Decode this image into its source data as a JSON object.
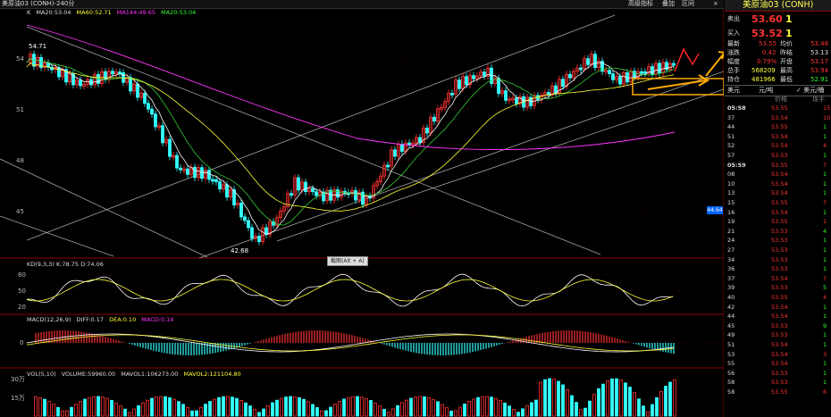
{
  "topbar": {
    "title": "美原油03 (CONH)-240分",
    "menu_items": [
      "高级指标",
      "叠加",
      "区间"
    ],
    "close_glyph": "×"
  },
  "price_panel": {
    "legend_prefix": "K",
    "ma20": "MA20:53.04",
    "ma60": "MA60:52.71",
    "ma144": "MA144:49.65",
    "ma20b": "MA20:53.04",
    "y_labels": [
      "54",
      "51",
      "48",
      "45"
    ],
    "high_label": "54.71",
    "low_label": "42.68",
    "current_price_tag": "44.64",
    "screenshot_hint": "截图(Alt + A)"
  },
  "kdj_panel": {
    "legend": "KD(9,3,3)  K:78.75  D:74.06",
    "y_labels": [
      "80",
      "50",
      "20"
    ]
  },
  "macd_panel": {
    "legend_prefix": "MACD(12,26,9)",
    "diff": "DIFF:0.17",
    "dea": "DEA:0.10",
    "macd": "MACD:0.14",
    "y_labels": [
      "0"
    ]
  },
  "vol_panel": {
    "legend_prefix": "VOL(5,10)",
    "volume": "VOLUME:59960.00",
    "mavol1": "MAVOL1:106273.00",
    "mavol2": "MAVOL2:121104.80",
    "y_labels": [
      "30万",
      "15万"
    ]
  },
  "quote": {
    "name": "美原油03 (CONH)",
    "sell_label": "卖出",
    "sell_price": "53.60",
    "sell_vol": "1",
    "buy_label": "买入",
    "buy_price": "53.52",
    "buy_vol": "1",
    "r1": {
      "l1": "最新",
      "v1": "53.55",
      "l2": "均价",
      "v2": "53.48"
    },
    "r2": {
      "l1": "涨跌",
      "v1": "0.42",
      "l2": "昨结",
      "v2": "53.13"
    },
    "r3": {
      "l1": "幅度",
      "v1": "0.79%",
      "l2": "开盘",
      "v2": "53.17"
    },
    "r4": {
      "l1": "总手",
      "v1": "568209",
      "l2": "最高",
      "v2": "53.94"
    },
    "r5": {
      "l1": "持仓",
      "v1": "481966",
      "l2": "最低",
      "v2": "52.91"
    },
    "tab1": "美元",
    "tab2": "元/吨",
    "tab3": "✓ 美元/桶",
    "col_price": "价格",
    "col_vol": "现手"
  },
  "ticks": [
    {
      "t": "05:58",
      "p": "53.55",
      "v": "15",
      "c": "red"
    },
    {
      "t": "37",
      "p": "53.54",
      "v": "10",
      "c": "red"
    },
    {
      "t": "44",
      "p": "53.55",
      "v": "1",
      "c": "grn"
    },
    {
      "t": "51",
      "p": "53.54",
      "v": "1",
      "c": "grn"
    },
    {
      "t": "52",
      "p": "53.54",
      "v": "4",
      "c": "red"
    },
    {
      "t": "57",
      "p": "53.53",
      "v": "1",
      "c": "grn"
    },
    {
      "t": "05:59",
      "p": "53.55",
      "v": "7",
      "c": "red"
    },
    {
      "t": "08",
      "p": "53.54",
      "v": "1",
      "c": "grn"
    },
    {
      "t": "10",
      "p": "53.54",
      "v": "1",
      "c": "grn"
    },
    {
      "t": "13",
      "p": "53.54",
      "v": "1",
      "c": "grn"
    },
    {
      "t": "15",
      "p": "53.55",
      "v": "7",
      "c": "red"
    },
    {
      "t": "16",
      "p": "53.54",
      "v": "1",
      "c": "grn"
    },
    {
      "t": "19",
      "p": "53.55",
      "v": "1",
      "c": "red"
    },
    {
      "t": "21",
      "p": "53.53",
      "v": "4",
      "c": "grn"
    },
    {
      "t": "24",
      "p": "53.53",
      "v": "1",
      "c": "grn"
    },
    {
      "t": "27",
      "p": "53.53",
      "v": "1",
      "c": "grn"
    },
    {
      "t": "34",
      "p": "53.53",
      "v": "1",
      "c": "grn"
    },
    {
      "t": "36",
      "p": "53.53",
      "v": "1",
      "c": "grn"
    },
    {
      "t": "37",
      "p": "53.54",
      "v": "7",
      "c": "red"
    },
    {
      "t": "39",
      "p": "53.53",
      "v": "5",
      "c": "grn"
    },
    {
      "t": "40",
      "p": "53.55",
      "v": "4",
      "c": "red"
    },
    {
      "t": "42",
      "p": "53.54",
      "v": "1",
      "c": "grn"
    },
    {
      "t": "44",
      "p": "53.54",
      "v": "1",
      "c": "grn"
    },
    {
      "t": "45",
      "p": "53.53",
      "v": "9",
      "c": "grn"
    },
    {
      "t": "49",
      "p": "53.53",
      "v": "1",
      "c": "grn"
    },
    {
      "t": "51",
      "p": "53.54",
      "v": "1",
      "c": "grn"
    },
    {
      "t": "53",
      "p": "53.54",
      "v": "3",
      "c": "red"
    },
    {
      "t": "55",
      "p": "53.54",
      "v": "1",
      "c": "grn"
    },
    {
      "t": "56",
      "p": "53.53",
      "v": "1",
      "c": "grn"
    },
    {
      "t": "58",
      "p": "53.53",
      "v": "1",
      "c": "grn"
    },
    {
      "t": "58",
      "p": "53.55",
      "v": "6",
      "c": "red"
    }
  ],
  "colors": {
    "up": "#ff3333",
    "down": "#33ffff",
    "ma20": "#ffffff",
    "ma60": "#ffff33",
    "ma144": "#ff33ff",
    "green_line": "#33cc33",
    "trend": "#cccccc",
    "annotation_arrow": "#ffaa00"
  }
}
